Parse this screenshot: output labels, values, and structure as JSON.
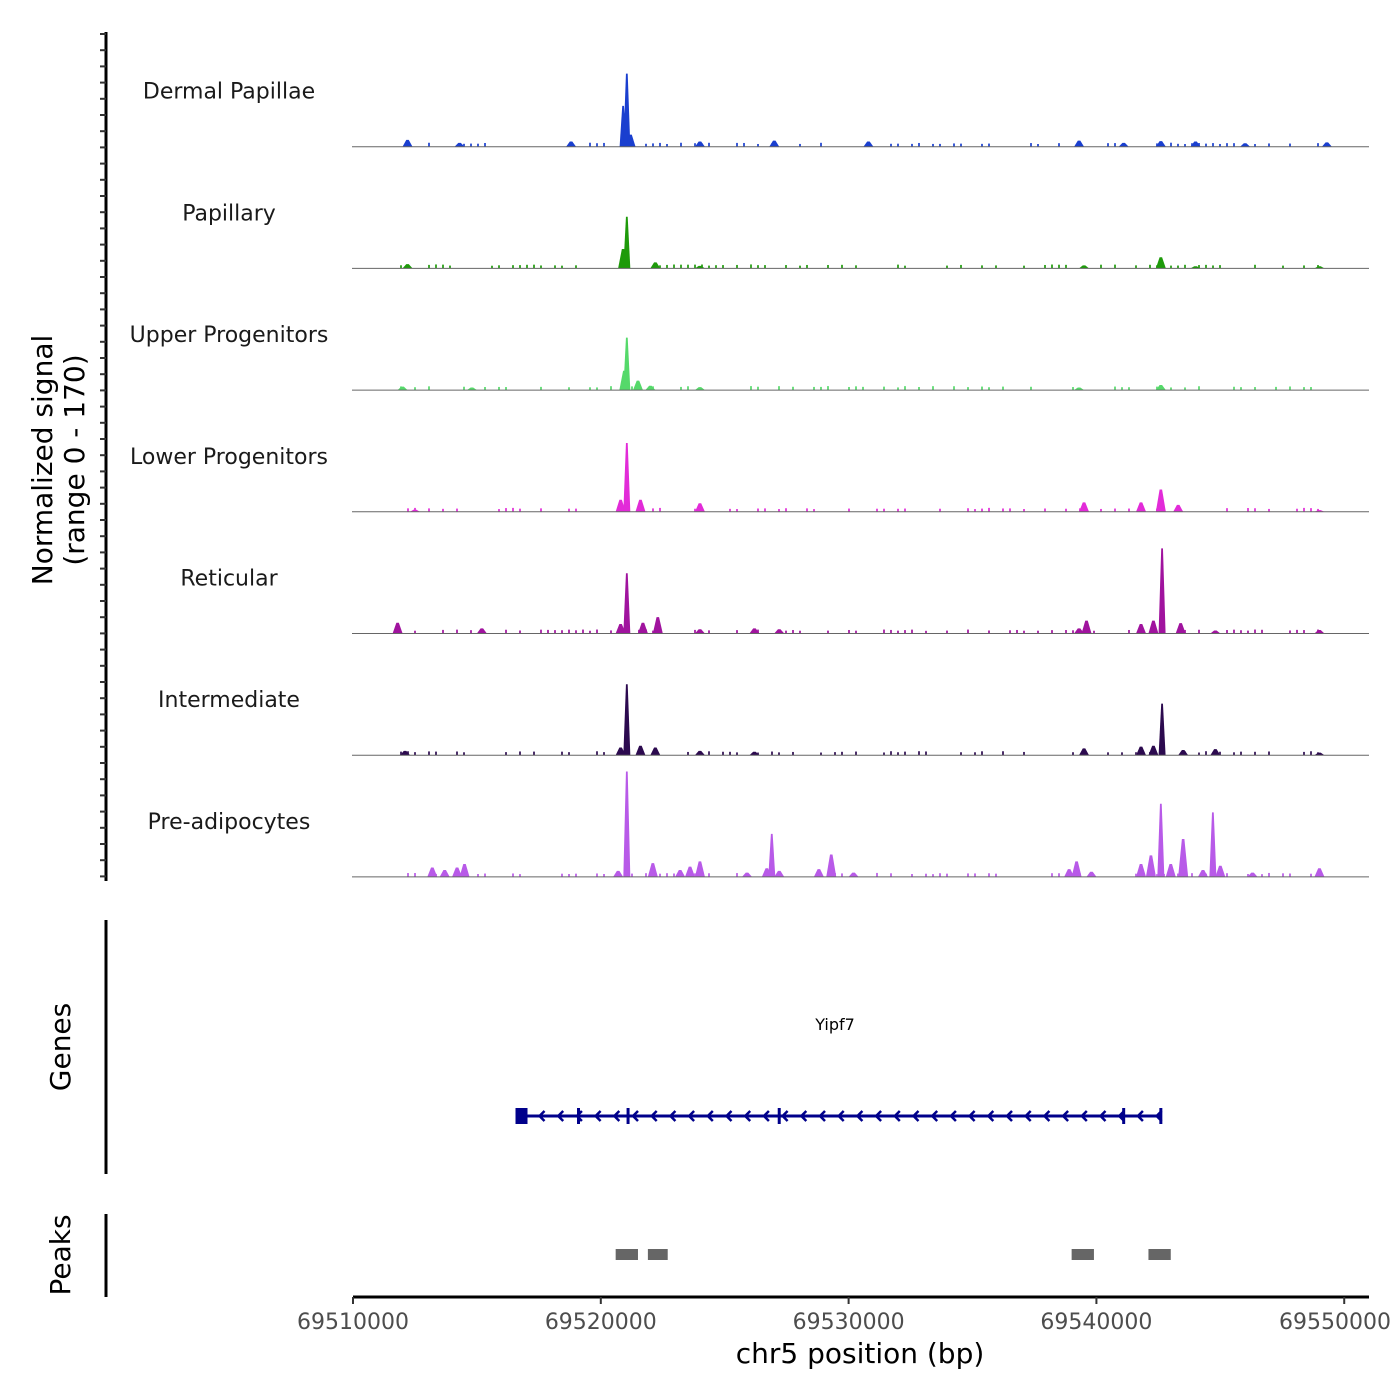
{
  "chart_data": [
    {
      "type": "area",
      "panel": "coverage",
      "ylabel_line1": "Normalized signal",
      "ylabel_line2": "(range 0 - 170)",
      "ylim": [
        0,
        170
      ],
      "xlim": [
        69510000,
        69551000
      ],
      "series": [
        {
          "name": "Dermal Papillae",
          "color": "#1a3fcf",
          "peaks": [
            [
              69512200,
              16
            ],
            [
              69514300,
              9
            ],
            [
              69518800,
              12
            ],
            [
              69520900,
              95
            ],
            [
              69521050,
              170
            ],
            [
              69521200,
              28
            ],
            [
              69524000,
              12
            ],
            [
              69527000,
              14
            ],
            [
              69530800,
              12
            ],
            [
              69539300,
              14
            ],
            [
              69541100,
              9
            ],
            [
              69542600,
              13
            ],
            [
              69544000,
              12
            ],
            [
              69546000,
              8
            ],
            [
              69549300,
              10
            ]
          ]
        },
        {
          "name": "Papillary",
          "color": "#1e9a0a",
          "peaks": [
            [
              69512200,
              10
            ],
            [
              69520900,
              45
            ],
            [
              69521050,
              120
            ],
            [
              69522200,
              14
            ],
            [
              69524000,
              6
            ],
            [
              69539500,
              7
            ],
            [
              69542600,
              26
            ],
            [
              69544000,
              5
            ],
            [
              69549000,
              5
            ]
          ]
        },
        {
          "name": "Upper Progenitors",
          "color": "#55d96a",
          "peaks": [
            [
              69512000,
              8
            ],
            [
              69514800,
              6
            ],
            [
              69520950,
              45
            ],
            [
              69521050,
              122
            ],
            [
              69521500,
              22
            ],
            [
              69522000,
              10
            ],
            [
              69524000,
              7
            ],
            [
              69539300,
              6
            ],
            [
              69542600,
              12
            ]
          ]
        },
        {
          "name": "Lower Progenitors",
          "color": "#e22bd8",
          "peaks": [
            [
              69512500,
              5
            ],
            [
              69520800,
              28
            ],
            [
              69521050,
              160
            ],
            [
              69521600,
              28
            ],
            [
              69524000,
              20
            ],
            [
              69539500,
              22
            ],
            [
              69541800,
              22
            ],
            [
              69542600,
              52
            ],
            [
              69543300,
              16
            ],
            [
              69549000,
              4
            ]
          ]
        },
        {
          "name": "Reticular",
          "color": "#a0139e",
          "peaks": [
            [
              69511800,
              25
            ],
            [
              69515200,
              12
            ],
            [
              69520800,
              22
            ],
            [
              69521050,
              140
            ],
            [
              69521700,
              25
            ],
            [
              69522300,
              38
            ],
            [
              69524000,
              10
            ],
            [
              69526200,
              12
            ],
            [
              69527200,
              10
            ],
            [
              69539300,
              12
            ],
            [
              69539600,
              30
            ],
            [
              69541800,
              22
            ],
            [
              69542300,
              30
            ],
            [
              69542650,
              198
            ],
            [
              69543400,
              24
            ],
            [
              69544800,
              7
            ],
            [
              69549000,
              8
            ]
          ]
        },
        {
          "name": "Intermediate",
          "color": "#2c0a4f",
          "peaks": [
            [
              69512100,
              10
            ],
            [
              69520800,
              18
            ],
            [
              69521050,
              165
            ],
            [
              69521600,
              22
            ],
            [
              69522200,
              18
            ],
            [
              69524000,
              10
            ],
            [
              69526200,
              8
            ],
            [
              69539500,
              16
            ],
            [
              69541800,
              20
            ],
            [
              69542300,
              22
            ],
            [
              69542650,
              120
            ],
            [
              69543500,
              12
            ],
            [
              69544800,
              14
            ],
            [
              69549000,
              6
            ]
          ]
        },
        {
          "name": "Pre-adipocytes",
          "color": "#b85ae8",
          "peaks": [
            [
              69513200,
              22
            ],
            [
              69513700,
              16
            ],
            [
              69514200,
              22
            ],
            [
              69514500,
              30
            ],
            [
              69520700,
              14
            ],
            [
              69521050,
              245
            ],
            [
              69522100,
              32
            ],
            [
              69523200,
              16
            ],
            [
              69523600,
              24
            ],
            [
              69524000,
              36
            ],
            [
              69525900,
              10
            ],
            [
              69526700,
              20
            ],
            [
              69526900,
              100
            ],
            [
              69527200,
              14
            ],
            [
              69528800,
              18
            ],
            [
              69529300,
              52
            ],
            [
              69530200,
              10
            ],
            [
              69538900,
              18
            ],
            [
              69539200,
              36
            ],
            [
              69539800,
              12
            ],
            [
              69541800,
              30
            ],
            [
              69542200,
              50
            ],
            [
              69542600,
              170
            ],
            [
              69543000,
              30
            ],
            [
              69543500,
              88
            ],
            [
              69544300,
              16
            ],
            [
              69544700,
              150
            ],
            [
              69545000,
              26
            ],
            [
              69546300,
              10
            ],
            [
              69549000,
              20
            ]
          ]
        }
      ]
    },
    {
      "type": "gene-track",
      "ylabel": "Genes",
      "gene": {
        "name": "Yipf7",
        "start": 69516800,
        "end": 69542600,
        "strand": "-",
        "color": "#00008b",
        "exons": [
          69516800,
          69519100,
          69521100,
          69527200,
          69541100,
          69542600
        ]
      }
    },
    {
      "type": "peak-track",
      "ylabel": "Peaks",
      "color": "#666666",
      "regions": [
        [
          69520600,
          69521500
        ],
        [
          69521900,
          69522700
        ],
        [
          69539000,
          69539900
        ],
        [
          69542100,
          69543000
        ]
      ],
      "xlabel": "chr5 position (bp)",
      "xticks": [
        "69510000",
        "69520000",
        "69530000",
        "69540000",
        "69550000"
      ],
      "xtick_values": [
        69510000,
        69520000,
        69530000,
        69540000,
        69550000
      ]
    }
  ]
}
